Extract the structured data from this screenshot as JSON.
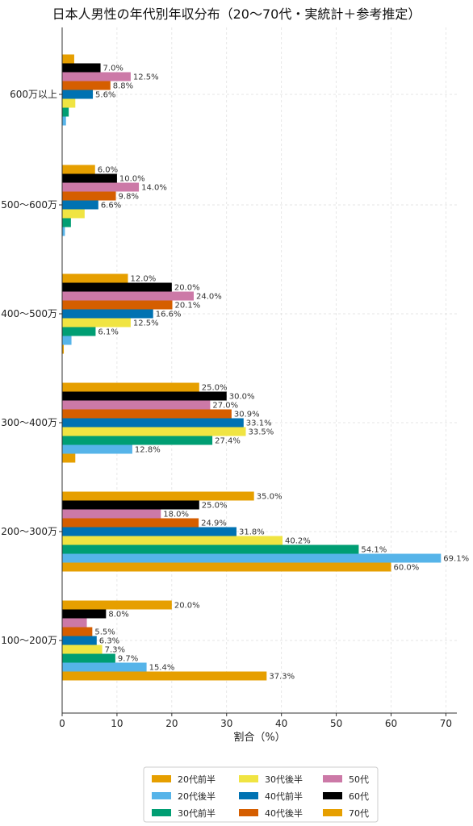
{
  "chart_data": {
    "type": "bar",
    "orientation": "horizontal",
    "title": "日本人男性の年代別年収分布（20〜70代・実統計＋参考推定）",
    "xlabel": "割合（%）",
    "ylabel": "",
    "xlim": [
      0,
      72
    ],
    "xticks": [
      "0",
      "10",
      "20",
      "30",
      "40",
      "50",
      "60",
      "70"
    ],
    "grid": true,
    "legend_position": "bottom",
    "categories": [
      "100〜200万",
      "200〜300万",
      "300〜400万",
      "400〜500万",
      "500〜600万",
      "600万以上"
    ],
    "series": [
      {
        "name": "20代前半",
        "color": "#E69F00",
        "values": [
          37.3,
          60.0,
          2.4,
          0.3,
          0.0,
          0.0
        ],
        "labels": [
          "37.3%",
          "60.0%",
          "",
          "",
          "",
          ""
        ]
      },
      {
        "name": "20代後半",
        "color": "#56B4E9",
        "values": [
          15.4,
          69.1,
          12.8,
          1.7,
          0.5,
          0.7
        ],
        "labels": [
          "15.4%",
          "69.1%",
          "12.8%",
          "",
          "",
          ""
        ]
      },
      {
        "name": "30代前半",
        "color": "#009E73",
        "values": [
          9.7,
          54.1,
          27.4,
          6.1,
          1.6,
          1.2
        ],
        "labels": [
          "9.7%",
          "54.1%",
          "27.4%",
          "6.1%",
          "",
          ""
        ]
      },
      {
        "name": "30代後半",
        "color": "#F0E442",
        "values": [
          7.3,
          40.2,
          33.5,
          12.5,
          4.1,
          2.4
        ],
        "labels": [
          "7.3%",
          "40.2%",
          "33.5%",
          "12.5%",
          "",
          ""
        ]
      },
      {
        "name": "40代前半",
        "color": "#0072B2",
        "values": [
          6.3,
          31.8,
          33.1,
          16.6,
          6.6,
          5.6
        ],
        "labels": [
          "6.3%",
          "31.8%",
          "33.1%",
          "16.6%",
          "6.6%",
          "5.6%"
        ]
      },
      {
        "name": "40代後半",
        "color": "#D55E00",
        "values": [
          5.5,
          24.9,
          30.9,
          20.1,
          9.8,
          8.8
        ],
        "labels": [
          "5.5%",
          "24.9%",
          "30.9%",
          "20.1%",
          "9.8%",
          "8.8%"
        ]
      },
      {
        "name": "50代",
        "color": "#CC79A7",
        "values": [
          4.5,
          18.0,
          27.0,
          24.0,
          14.0,
          12.5
        ],
        "labels": [
          "",
          "18.0%",
          "27.0%",
          "24.0%",
          "14.0%",
          "12.5%"
        ]
      },
      {
        "name": "60代",
        "color": "#000000",
        "values": [
          8.0,
          25.0,
          30.0,
          20.0,
          10.0,
          7.0
        ],
        "labels": [
          "8.0%",
          "25.0%",
          "30.0%",
          "20.0%",
          "10.0%",
          "7.0%"
        ]
      },
      {
        "name": "70代",
        "color": "#E69F00",
        "values": [
          20.0,
          35.0,
          25.0,
          12.0,
          6.0,
          2.2
        ],
        "labels": [
          "20.0%",
          "35.0%",
          "25.0%",
          "12.0%",
          "6.0%",
          ""
        ]
      }
    ]
  }
}
